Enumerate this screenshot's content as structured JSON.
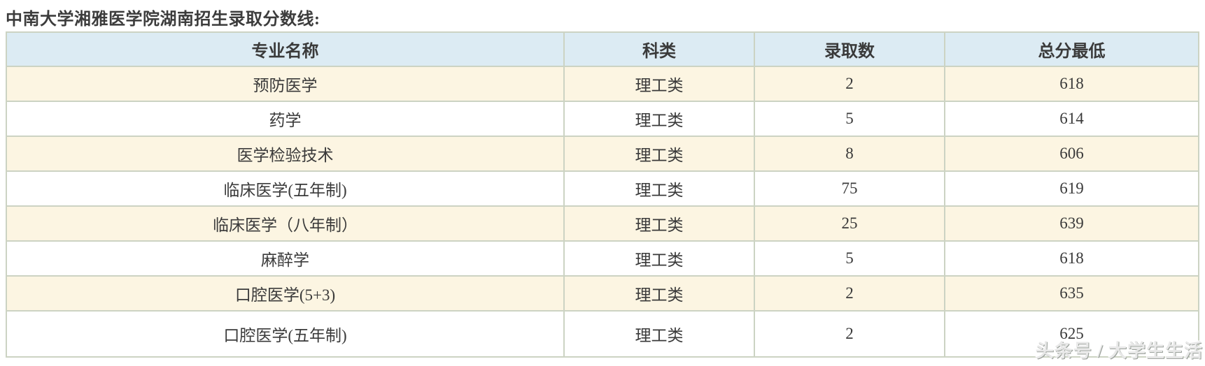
{
  "page": {
    "title": "中南大学湘雅医学院湖南招生录取分数线:"
  },
  "table": {
    "headers": {
      "major": "专业名称",
      "category": "科类",
      "admit_count": "录取数",
      "min_score": "总分最低"
    },
    "rows": [
      {
        "major": "预防医学",
        "category": "理工类",
        "admit_count": "2",
        "min_score": "618"
      },
      {
        "major": "药学",
        "category": "理工类",
        "admit_count": "5",
        "min_score": "614"
      },
      {
        "major": "医学检验技术",
        "category": "理工类",
        "admit_count": "8",
        "min_score": "606"
      },
      {
        "major": "临床医学(五年制)",
        "category": "理工类",
        "admit_count": "75",
        "min_score": "619"
      },
      {
        "major": "临床医学（八年制）",
        "category": "理工类",
        "admit_count": "25",
        "min_score": "639"
      },
      {
        "major": "麻醉学",
        "category": "理工类",
        "admit_count": "5",
        "min_score": "618"
      },
      {
        "major": "口腔医学(5+3)",
        "category": "理工类",
        "admit_count": "2",
        "min_score": "635"
      },
      {
        "major": "口腔医学(五年制)",
        "category": "理工类",
        "admit_count": "2",
        "min_score": "625"
      }
    ]
  },
  "watermark": {
    "text": "头条号 / 大学生生活"
  },
  "colors": {
    "header_bg": "#dcebf3",
    "row_alt_bg": "#fcf5e2",
    "border": "#ccd3c3",
    "text": "#3a3a3a",
    "watermark": "#e8e8e8"
  }
}
